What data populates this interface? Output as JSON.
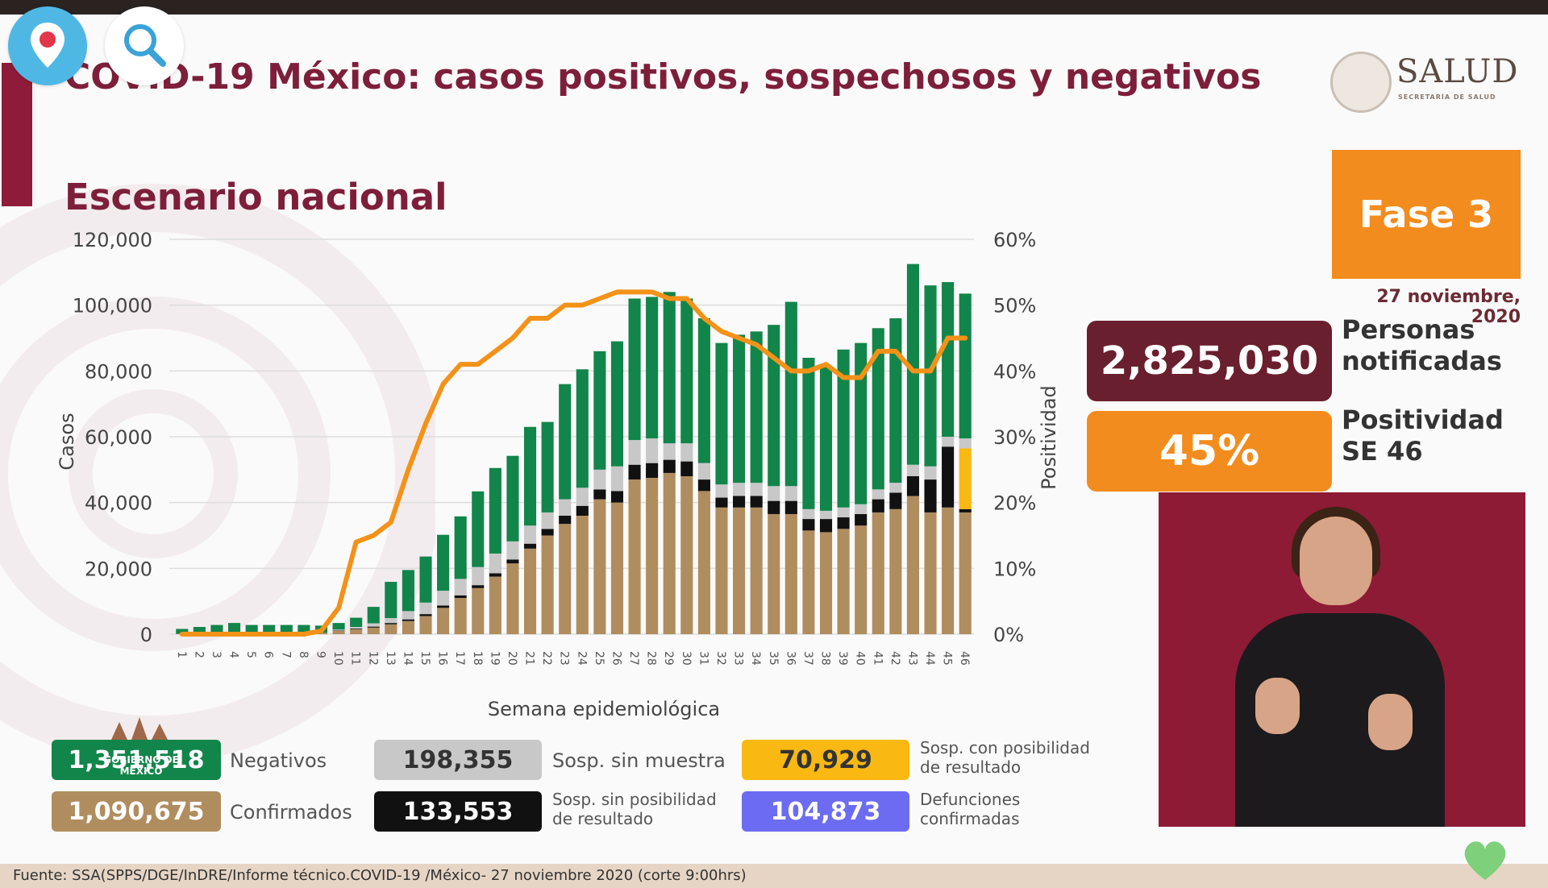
{
  "header": {
    "title": "COVID-19 México: casos positivos, sospechosos y negativos",
    "subtitle": "Escenario nacional",
    "logo_text": "SALUD",
    "logo_subtext": "SECRETARÍA DE SALUD"
  },
  "overlay_icons": [
    "location-pin-icon",
    "search-icon"
  ],
  "fase": {
    "label": "Fase 3",
    "date": "27 noviembre, 2020"
  },
  "stats": {
    "personas_value": "2,825,030",
    "personas_label": "Personas\nnotificadas",
    "positividad_value": "45%",
    "positividad_label": "Positividad\nSE 46"
  },
  "legend": {
    "negativos_value": "1,351,518",
    "negativos_label": "Negativos",
    "confirmados_value": "1,090,675",
    "confirmados_label": "Confirmados",
    "sosp_sin_muestra_value": "198,355",
    "sosp_sin_muestra_label": "Sosp. sin muestra",
    "sosp_sin_pos_value": "133,553",
    "sosp_sin_pos_label": "Sosp. sin posibilidad\nde resultado",
    "sosp_con_pos_value": "70,929",
    "sosp_con_pos_label": "Sosp. con posibilidad\nde resultado",
    "defunciones_value": "104,873",
    "defunciones_label": "Defunciones\nconfirmadas"
  },
  "gobierno_label": "GOBIERNO DE MÉXICO",
  "source": "Fuente: SSA(SPPS/DGE/InDRE/Informe técnico.COVID-19 /México- 27 noviembre 2020 (corte 9:00hrs)",
  "colors": {
    "negativos": "#12854a",
    "confirmados": "#b08d5f",
    "sosp_sin_muestra": "#c8c8c8",
    "sosp_sin_pos": "#111111",
    "sosp_con_pos": "#f9b812",
    "defunciones": "#6c6cf2",
    "positividad_line": "#f39218",
    "brand": "#7d1f3a"
  },
  "chart_data": {
    "type": "bar",
    "stacked": true,
    "xlabel": "Semana epidemiológica",
    "ylabel": "Casos",
    "y2label": "Positividad",
    "ylim": [
      0,
      120000
    ],
    "y2lim": [
      0,
      60
    ],
    "yticks": [
      "0",
      "20,000",
      "40,000",
      "60,000",
      "80,000",
      "100,000",
      "120,000"
    ],
    "y2ticks": [
      "0%",
      "10%",
      "20%",
      "30%",
      "40%",
      "50%",
      "60%"
    ],
    "grid": true,
    "categories": [
      "1",
      "2",
      "3",
      "4",
      "5",
      "6",
      "7",
      "8",
      "9",
      "10",
      "11",
      "12",
      "13",
      "14",
      "15",
      "16",
      "17",
      "18",
      "19",
      "20",
      "21",
      "22",
      "23",
      "24",
      "25",
      "26",
      "27",
      "28",
      "29",
      "30",
      "31",
      "32",
      "33",
      "34",
      "35",
      "36",
      "37",
      "38",
      "39",
      "40",
      "41",
      "42",
      "43",
      "44",
      "45",
      "46"
    ],
    "series": [
      {
        "name": "Confirmados",
        "values": [
          100,
          200,
          300,
          400,
          300,
          300,
          300,
          300,
          400,
          1000,
          1500,
          2000,
          3000,
          4000,
          5500,
          8000,
          11000,
          14000,
          17500,
          21500,
          26000,
          30000,
          33500,
          36000,
          41000,
          40000,
          47000,
          47500,
          49000,
          48000,
          43500,
          38500,
          38500,
          38500,
          36500,
          36500,
          31500,
          31000,
          32000,
          33000,
          37000,
          38000,
          42000,
          37000,
          38500,
          37000
        ]
      },
      {
        "name": "Sosp. sin posibilidad de resultado",
        "values": [
          0,
          0,
          0,
          0,
          0,
          0,
          0,
          0,
          0,
          100,
          200,
          300,
          400,
          500,
          600,
          700,
          800,
          900,
          1000,
          1200,
          1500,
          2000,
          2500,
          3000,
          3000,
          3500,
          4500,
          4500,
          4000,
          4500,
          3500,
          3000,
          3500,
          3500,
          4000,
          4000,
          3500,
          4000,
          3500,
          3500,
          4000,
          5000,
          6000,
          10000,
          18500,
          1000
        ]
      },
      {
        "name": "Sosp. con posibilidad de resultado",
        "values": [
          0,
          0,
          0,
          0,
          0,
          0,
          0,
          0,
          0,
          0,
          0,
          0,
          0,
          0,
          0,
          0,
          0,
          0,
          0,
          0,
          0,
          0,
          0,
          0,
          0,
          0,
          0,
          0,
          0,
          0,
          0,
          0,
          0,
          0,
          0,
          0,
          0,
          0,
          0,
          0,
          0,
          0,
          0,
          0,
          0,
          18500
        ]
      },
      {
        "name": "Sosp. sin muestra",
        "values": [
          0,
          0,
          0,
          0,
          0,
          0,
          0,
          0,
          0,
          300,
          500,
          1000,
          1500,
          2500,
          3500,
          4500,
          5000,
          5500,
          6000,
          5500,
          5500,
          5000,
          5000,
          5500,
          6000,
          7500,
          7500,
          7500,
          5000,
          5500,
          5000,
          4000,
          4000,
          4000,
          4500,
          4500,
          3000,
          2500,
          3000,
          3000,
          3000,
          3000,
          3500,
          4000,
          3000,
          3000
        ]
      },
      {
        "name": "Negativos",
        "values": [
          1500,
          2000,
          2500,
          3000,
          2500,
          2500,
          2500,
          2500,
          2200,
          2000,
          2800,
          5000,
          11000,
          12500,
          14000,
          17000,
          19000,
          23000,
          26000,
          26000,
          30000,
          27500,
          35000,
          36000,
          36000,
          38000,
          43000,
          43000,
          46000,
          44000,
          44000,
          43000,
          45000,
          46000,
          49000,
          56000,
          46000,
          44000,
          48000,
          49000,
          49000,
          50000,
          61000,
          55000,
          47000,
          44000
        ]
      },
      {
        "name": "Positividad",
        "axis": "right",
        "unit": "%",
        "values": [
          0,
          0,
          0,
          0,
          0,
          0,
          0,
          0,
          0.5,
          4,
          14,
          15,
          17,
          25,
          32,
          38,
          41,
          41,
          43,
          45,
          48,
          48,
          50,
          50,
          51,
          52,
          52,
          52,
          51,
          51,
          48,
          46,
          45,
          44,
          42,
          40,
          40,
          41,
          39,
          39,
          43,
          43,
          40,
          40,
          45,
          45
        ]
      }
    ]
  }
}
